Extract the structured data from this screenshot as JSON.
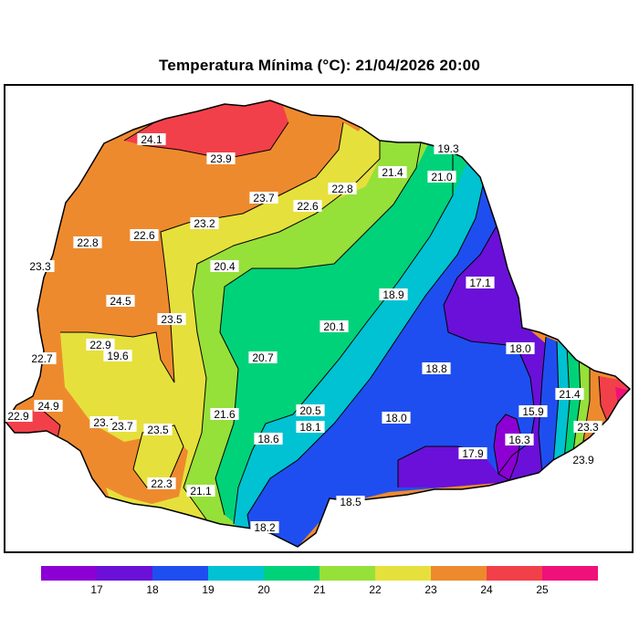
{
  "title": "Temperatura Mínima (°C): 21/04/2026 20:00",
  "colors": {
    "lt17": "#8c00d4",
    "17_18": "#6a10d8",
    "18_19": "#1f4ef0",
    "19_20": "#00c2d2",
    "20_21": "#00d27a",
    "21_22": "#96e03a",
    "22_23": "#e6e03c",
    "23_24": "#ee8a2e",
    "24_25": "#f2404a",
    "gt25": "#f0107a"
  },
  "legend": {
    "tick_labels": [
      "17",
      "18",
      "19",
      "20",
      "21",
      "22",
      "23",
      "24",
      "25"
    ]
  },
  "station_labels": [
    "24.1",
    "23.9",
    "19.3",
    "21.4",
    "21.0",
    "22.8",
    "23.7",
    "22.6",
    "22.6",
    "23.2",
    "22.8",
    "23.3",
    "20.4",
    "24.5",
    "23.5",
    "17.1",
    "18.9",
    "20.1",
    "22.9",
    "19.6",
    "18.0",
    "22.7",
    "20.7",
    "18.8",
    "24.9",
    "22.9",
    "21.6",
    "20.5",
    "18.1",
    "18.0",
    "15.9",
    "21.4",
    "23.1",
    "23.7",
    "23.5",
    "16.3",
    "23.3",
    "18.6",
    "17.9",
    "23.9",
    "22.3",
    "21.1",
    "18.5",
    "18.2"
  ]
}
